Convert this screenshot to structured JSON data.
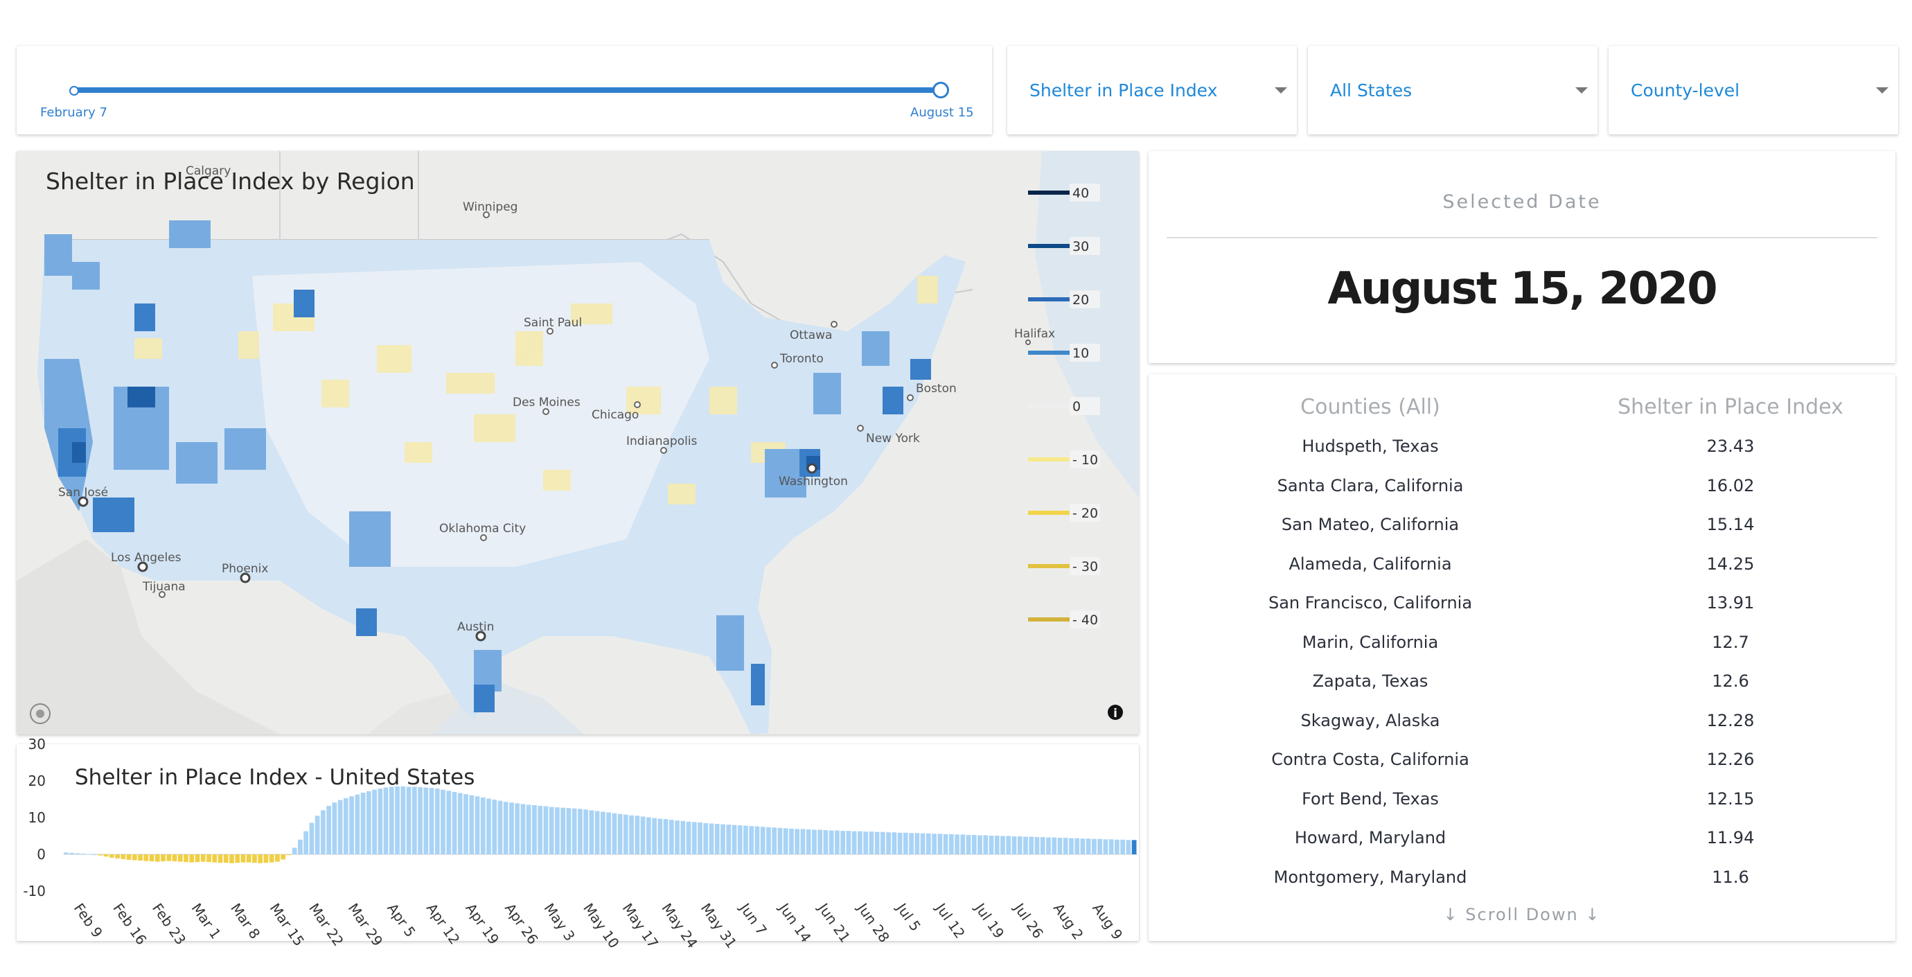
{
  "slider": {
    "start_label": "February 7",
    "end_label": "August 15"
  },
  "dropdowns": {
    "metric": "Shelter in Place Index",
    "region": "All States",
    "level": "County-level"
  },
  "map": {
    "title": "Shelter in Place Index by Region",
    "legend": [
      "40",
      "30",
      "20",
      "10",
      "0",
      "- 10",
      "- 20",
      "- 30",
      "- 40"
    ],
    "legend_colors": [
      "#08244a",
      "#0d4a87",
      "#2b6bb8",
      "#3f87cb",
      "#eeeeee",
      "#f6e98a",
      "#f2d44a",
      "#e2c13e",
      "#d3b23a"
    ],
    "cities": [
      "Winnipeg",
      "Saint Paul",
      "Ottawa",
      "Halifax",
      "Toronto",
      "Boston",
      "Des Moines",
      "Chicago",
      "Indianapolis",
      "New York",
      "Washington",
      "San José",
      "Oklahoma City",
      "Los Angeles",
      "Phoenix",
      "Tijuana",
      "Austin",
      "Calgary"
    ]
  },
  "selected": {
    "label": "Selected Date",
    "date": "August 15, 2020"
  },
  "table": {
    "headers": [
      "Counties (All)",
      "Shelter in Place Index"
    ],
    "rows": [
      [
        "Hudspeth, Texas",
        "23.43"
      ],
      [
        "Santa Clara, California",
        "16.02"
      ],
      [
        "San Mateo, California",
        "15.14"
      ],
      [
        "Alameda, California",
        "14.25"
      ],
      [
        "San Francisco, California",
        "13.91"
      ],
      [
        "Marin, California",
        "12.7"
      ],
      [
        "Zapata, Texas",
        "12.6"
      ],
      [
        "Skagway, Alaska",
        "12.28"
      ],
      [
        "Contra Costa, California",
        "12.26"
      ],
      [
        "Fort Bend, Texas",
        "12.15"
      ],
      [
        "Howard, Maryland",
        "11.94"
      ],
      [
        "Montgomery, Maryland",
        "11.6"
      ]
    ],
    "scroll_label": "↓ Scroll Down ↓"
  },
  "chart_data": {
    "type": "bar",
    "title": "Shelter in Place Index - United States",
    "ylim": [
      -10,
      30
    ],
    "yticks": [
      30,
      20,
      10,
      0,
      -10
    ],
    "xticks": [
      "Feb 9",
      "Feb 16",
      "Feb 23",
      "Mar 1",
      "Mar 8",
      "Mar 15",
      "Mar 22",
      "Mar 29",
      "Apr 5",
      "Apr 12",
      "Apr 19",
      "Apr 26",
      "May 3",
      "May 10",
      "May 17",
      "May 24",
      "May 31",
      "Jun 7",
      "Jun 14",
      "Jun 21",
      "Jun 28",
      "Jul 5",
      "Jul 12",
      "Jul 19",
      "Jul 26",
      "Aug 2",
      "Aug 9"
    ],
    "colors": {
      "positive": "#a9d3f5",
      "negative": "#f0cf45",
      "selected": "#2d7fd0"
    },
    "start_date": "Feb 7",
    "values": [
      0.5,
      0.4,
      0.3,
      0.2,
      0.1,
      0,
      -0.3,
      -0.6,
      -0.9,
      -1.1,
      -1.3,
      -1.5,
      -1.6,
      -1.7,
      -1.8,
      -1.9,
      -2.0,
      -1.9,
      -1.8,
      -1.9,
      -2.0,
      -2.1,
      -2.2,
      -2.1,
      -2.0,
      -2.1,
      -2.2,
      -2.3,
      -2.3,
      -2.4,
      -2.3,
      -2.2,
      -2.2,
      -2.3,
      -2.4,
      -2.3,
      -2.2,
      -2.0,
      -1.4,
      -0.2,
      1.8,
      4.0,
      6.3,
      8.6,
      10.5,
      12.0,
      13.2,
      14.1,
      14.8,
      15.3,
      15.8,
      16.3,
      16.8,
      17.2,
      17.6,
      17.9,
      18.2,
      18.4,
      18.5,
      18.5,
      18.4,
      18.4,
      18.3,
      18.2,
      18.1,
      17.9,
      17.6,
      17.3,
      17.0,
      16.7,
      16.4,
      16.1,
      15.8,
      15.5,
      15.2,
      14.9,
      14.6,
      14.3,
      14.1,
      13.9,
      13.7,
      13.5,
      13.4,
      13.2,
      13.1,
      12.9,
      12.8,
      12.7,
      12.6,
      12.5,
      12.4,
      12.2,
      12.0,
      11.8,
      11.6,
      11.4,
      11.2,
      11.0,
      10.8,
      10.6,
      10.5,
      10.3,
      10.1,
      9.9,
      9.7,
      9.6,
      9.4,
      9.2,
      9.1,
      8.9,
      8.8,
      8.7,
      8.5,
      8.4,
      8.3,
      8.2,
      8.1,
      8.0,
      7.9,
      7.8,
      7.7,
      7.6,
      7.5,
      7.4,
      7.3,
      7.2,
      7.1,
      7.0,
      6.9,
      6.9,
      6.8,
      6.7,
      6.7,
      6.6,
      6.5,
      6.5,
      6.4,
      6.4,
      6.3,
      6.3,
      6.2,
      6.2,
      6.1,
      6.1,
      6.0,
      6.0,
      5.9,
      5.9,
      5.8,
      5.8,
      5.7,
      5.7,
      5.6,
      5.6,
      5.5,
      5.5,
      5.4,
      5.4,
      5.3,
      5.3,
      5.2,
      5.2,
      5.1,
      5.1,
      5.0,
      5.0,
      4.9,
      4.9,
      4.8,
      4.8,
      4.7,
      4.7,
      4.6,
      4.6,
      4.5,
      4.5,
      4.4,
      4.4,
      4.3,
      4.3,
      4.2,
      4.2,
      4.1,
      4.1,
      4.0,
      4.0,
      3.9,
      3.9
    ]
  }
}
